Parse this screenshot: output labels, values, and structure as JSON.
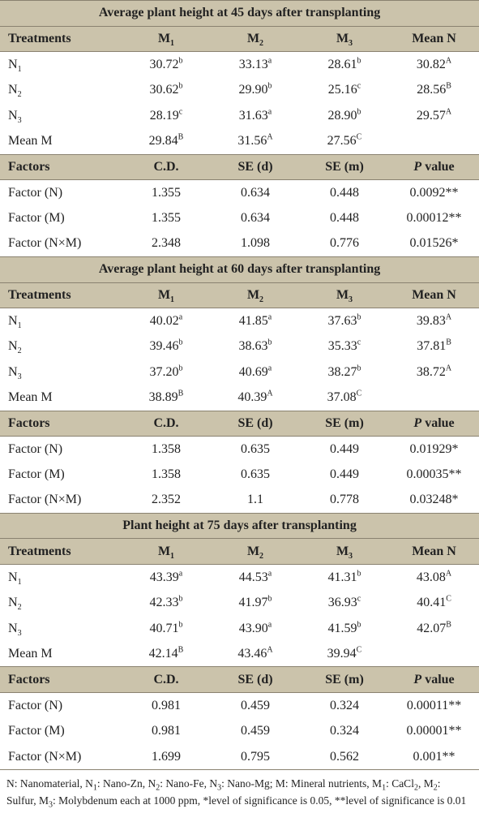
{
  "sections": [
    {
      "title": "Average plant height at 45 days after transplanting",
      "header": [
        [
          {
            "t": "Treatments"
          }
        ],
        [
          {
            "t": "M"
          },
          {
            "t": "1",
            "s": "sub"
          }
        ],
        [
          {
            "t": "M"
          },
          {
            "t": "2",
            "s": "sub"
          }
        ],
        [
          {
            "t": "M"
          },
          {
            "t": "3",
            "s": "sub"
          }
        ],
        [
          {
            "t": "Mean N"
          }
        ]
      ],
      "rows": [
        [
          [
            {
              "t": "N"
            },
            {
              "t": "1",
              "s": "sub"
            }
          ],
          [
            {
              "t": "30.72"
            },
            {
              "t": "b",
              "s": "sup"
            }
          ],
          [
            {
              "t": "33.13"
            },
            {
              "t": "a",
              "s": "sup"
            }
          ],
          [
            {
              "t": "28.61"
            },
            {
              "t": "b",
              "s": "sup"
            }
          ],
          [
            {
              "t": "30.82"
            },
            {
              "t": "A",
              "s": "sup"
            }
          ]
        ],
        [
          [
            {
              "t": "N"
            },
            {
              "t": "2",
              "s": "sub"
            }
          ],
          [
            {
              "t": "30.62"
            },
            {
              "t": "b",
              "s": "sup"
            }
          ],
          [
            {
              "t": "29.90"
            },
            {
              "t": "b",
              "s": "sup"
            }
          ],
          [
            {
              "t": "25.16"
            },
            {
              "t": "c",
              "s": "sup"
            }
          ],
          [
            {
              "t": "28.56"
            },
            {
              "t": "B",
              "s": "sup"
            }
          ]
        ],
        [
          [
            {
              "t": "N"
            },
            {
              "t": "3",
              "s": "sub"
            }
          ],
          [
            {
              "t": "28.19"
            },
            {
              "t": "c",
              "s": "sup"
            }
          ],
          [
            {
              "t": "31.63"
            },
            {
              "t": "a",
              "s": "sup"
            }
          ],
          [
            {
              "t": "28.90"
            },
            {
              "t": "b",
              "s": "sup"
            }
          ],
          [
            {
              "t": "29.57"
            },
            {
              "t": "A",
              "s": "sup"
            }
          ]
        ],
        [
          [
            {
              "t": "Mean M"
            }
          ],
          [
            {
              "t": "29.84"
            },
            {
              "t": "B",
              "s": "sup"
            }
          ],
          [
            {
              "t": "31.56"
            },
            {
              "t": "A",
              "s": "sup"
            }
          ],
          [
            {
              "t": "27.56"
            },
            {
              "t": "C",
              "s": "sup"
            }
          ],
          []
        ]
      ],
      "factor_header": [
        [
          {
            "t": "Factors"
          }
        ],
        [
          {
            "t": "C.D."
          }
        ],
        [
          {
            "t": "SE (d)"
          }
        ],
        [
          {
            "t": "SE (m)"
          }
        ],
        [
          {
            "t": "P",
            "s": "i"
          },
          {
            "t": " value"
          }
        ]
      ],
      "factor_rows": [
        [
          [
            {
              "t": "Factor (N)"
            }
          ],
          [
            {
              "t": "1.355"
            }
          ],
          [
            {
              "t": "0.634"
            }
          ],
          [
            {
              "t": "0.448"
            }
          ],
          [
            {
              "t": "0.0092**"
            }
          ]
        ],
        [
          [
            {
              "t": "Factor (M)"
            }
          ],
          [
            {
              "t": "1.355"
            }
          ],
          [
            {
              "t": "0.634"
            }
          ],
          [
            {
              "t": "0.448"
            }
          ],
          [
            {
              "t": "0.00012**"
            }
          ]
        ],
        [
          [
            {
              "t": "Factor (N×M)"
            }
          ],
          [
            {
              "t": "2.348"
            }
          ],
          [
            {
              "t": "1.098"
            }
          ],
          [
            {
              "t": "0.776"
            }
          ],
          [
            {
              "t": "0.01526*"
            }
          ]
        ]
      ]
    },
    {
      "title": "Average plant height at 60 days after transplanting",
      "header": [
        [
          {
            "t": "Treatments"
          }
        ],
        [
          {
            "t": "M"
          },
          {
            "t": "1",
            "s": "sub"
          }
        ],
        [
          {
            "t": "M"
          },
          {
            "t": "2",
            "s": "sub"
          }
        ],
        [
          {
            "t": "M"
          },
          {
            "t": "3",
            "s": "sub"
          }
        ],
        [
          {
            "t": "Mean N"
          }
        ]
      ],
      "rows": [
        [
          [
            {
              "t": "N"
            },
            {
              "t": "1",
              "s": "sub"
            }
          ],
          [
            {
              "t": "40.02"
            },
            {
              "t": "a",
              "s": "sup"
            }
          ],
          [
            {
              "t": "41.85"
            },
            {
              "t": "a",
              "s": "sup"
            }
          ],
          [
            {
              "t": "37.63"
            },
            {
              "t": "b",
              "s": "sup"
            }
          ],
          [
            {
              "t": "39.83"
            },
            {
              "t": "A",
              "s": "sup"
            }
          ]
        ],
        [
          [
            {
              "t": "N"
            },
            {
              "t": "2",
              "s": "sub"
            }
          ],
          [
            {
              "t": "39.46"
            },
            {
              "t": "b",
              "s": "sup"
            }
          ],
          [
            {
              "t": "38.63"
            },
            {
              "t": "b",
              "s": "sup"
            }
          ],
          [
            {
              "t": "35.33"
            },
            {
              "t": "c",
              "s": "sup"
            }
          ],
          [
            {
              "t": "37.81"
            },
            {
              "t": "B",
              "s": "sup"
            }
          ]
        ],
        [
          [
            {
              "t": "N"
            },
            {
              "t": "3",
              "s": "sub"
            }
          ],
          [
            {
              "t": "37.20"
            },
            {
              "t": "b",
              "s": "sup"
            }
          ],
          [
            {
              "t": "40.69"
            },
            {
              "t": "a",
              "s": "sup"
            }
          ],
          [
            {
              "t": "38.27"
            },
            {
              "t": "b",
              "s": "sup"
            }
          ],
          [
            {
              "t": "38.72"
            },
            {
              "t": "A",
              "s": "sup"
            }
          ]
        ],
        [
          [
            {
              "t": "Mean M"
            }
          ],
          [
            {
              "t": "38.89"
            },
            {
              "t": "B",
              "s": "sup"
            }
          ],
          [
            {
              "t": "40.39"
            },
            {
              "t": "A",
              "s": "sup"
            }
          ],
          [
            {
              "t": "37.08"
            },
            {
              "t": "C",
              "s": "sup"
            }
          ],
          []
        ]
      ],
      "factor_header": [
        [
          {
            "t": "Factors"
          }
        ],
        [
          {
            "t": "C.D."
          }
        ],
        [
          {
            "t": "SE (d)"
          }
        ],
        [
          {
            "t": "SE (m)"
          }
        ],
        [
          {
            "t": "P",
            "s": "i"
          },
          {
            "t": " value"
          }
        ]
      ],
      "factor_rows": [
        [
          [
            {
              "t": "Factor (N)"
            }
          ],
          [
            {
              "t": "1.358"
            }
          ],
          [
            {
              "t": "0.635"
            }
          ],
          [
            {
              "t": "0.449"
            }
          ],
          [
            {
              "t": "0.01929*"
            }
          ]
        ],
        [
          [
            {
              "t": "Factor (M)"
            }
          ],
          [
            {
              "t": "1.358"
            }
          ],
          [
            {
              "t": "0.635"
            }
          ],
          [
            {
              "t": "0.449"
            }
          ],
          [
            {
              "t": "0.00035**"
            }
          ]
        ],
        [
          [
            {
              "t": "Factor (N×M)"
            }
          ],
          [
            {
              "t": "2.352"
            }
          ],
          [
            {
              "t": "1.1"
            }
          ],
          [
            {
              "t": "0.778"
            }
          ],
          [
            {
              "t": "0.03248*"
            }
          ]
        ]
      ]
    },
    {
      "title": "Plant height at 75 days after transplanting",
      "header": [
        [
          {
            "t": "Treatments"
          }
        ],
        [
          {
            "t": "M"
          },
          {
            "t": "1",
            "s": "sub"
          }
        ],
        [
          {
            "t": "M"
          },
          {
            "t": "2",
            "s": "sub"
          }
        ],
        [
          {
            "t": "M"
          },
          {
            "t": "3",
            "s": "sub"
          }
        ],
        [
          {
            "t": "Mean N"
          }
        ]
      ],
      "rows": [
        [
          [
            {
              "t": "N"
            },
            {
              "t": "1",
              "s": "sub"
            }
          ],
          [
            {
              "t": "43.39"
            },
            {
              "t": "a",
              "s": "sup"
            }
          ],
          [
            {
              "t": "44.53"
            },
            {
              "t": "a",
              "s": "sup"
            }
          ],
          [
            {
              "t": "41.31"
            },
            {
              "t": "b",
              "s": "sup"
            }
          ],
          [
            {
              "t": "43.08"
            },
            {
              "t": "A",
              "s": "sup"
            }
          ]
        ],
        [
          [
            {
              "t": "N"
            },
            {
              "t": "2",
              "s": "sub"
            }
          ],
          [
            {
              "t": "42.33"
            },
            {
              "t": "b",
              "s": "sup"
            }
          ],
          [
            {
              "t": "41.97"
            },
            {
              "t": "b",
              "s": "sup"
            }
          ],
          [
            {
              "t": "36.93"
            },
            {
              "t": "c",
              "s": "sup"
            }
          ],
          [
            {
              "t": "40.41"
            },
            {
              "t": "C",
              "s": "sup"
            }
          ]
        ],
        [
          [
            {
              "t": "N"
            },
            {
              "t": "3",
              "s": "sub"
            }
          ],
          [
            {
              "t": "40.71"
            },
            {
              "t": "b",
              "s": "sup"
            }
          ],
          [
            {
              "t": "43.90"
            },
            {
              "t": "a",
              "s": "sup"
            }
          ],
          [
            {
              "t": "41.59"
            },
            {
              "t": "b",
              "s": "sup"
            }
          ],
          [
            {
              "t": "42.07"
            },
            {
              "t": "B",
              "s": "sup"
            }
          ]
        ],
        [
          [
            {
              "t": "Mean M"
            }
          ],
          [
            {
              "t": "42.14"
            },
            {
              "t": "B",
              "s": "sup"
            }
          ],
          [
            {
              "t": "43.46"
            },
            {
              "t": "A",
              "s": "sup"
            }
          ],
          [
            {
              "t": "39.94"
            },
            {
              "t": "C",
              "s": "sup"
            }
          ],
          []
        ]
      ],
      "factor_header": [
        [
          {
            "t": "Factors"
          }
        ],
        [
          {
            "t": "C.D."
          }
        ],
        [
          {
            "t": "SE (d)"
          }
        ],
        [
          {
            "t": "SE (m)"
          }
        ],
        [
          {
            "t": "P",
            "s": "i"
          },
          {
            "t": " value"
          }
        ]
      ],
      "factor_rows": [
        [
          [
            {
              "t": "Factor (N)"
            }
          ],
          [
            {
              "t": "0.981"
            }
          ],
          [
            {
              "t": "0.459"
            }
          ],
          [
            {
              "t": "0.324"
            }
          ],
          [
            {
              "t": "0.00011**"
            }
          ]
        ],
        [
          [
            {
              "t": "Factor (M)"
            }
          ],
          [
            {
              "t": "0.981"
            }
          ],
          [
            {
              "t": "0.459"
            }
          ],
          [
            {
              "t": "0.324"
            }
          ],
          [
            {
              "t": "0.00001**"
            }
          ]
        ],
        [
          [
            {
              "t": "Factor (N×M)"
            }
          ],
          [
            {
              "t": "1.699"
            }
          ],
          [
            {
              "t": "0.795"
            }
          ],
          [
            {
              "t": "0.562"
            }
          ],
          [
            {
              "t": "0.001**"
            }
          ]
        ]
      ]
    }
  ],
  "footnote": [
    {
      "t": "N: Nanomaterial, N"
    },
    {
      "t": "1",
      "s": "sub"
    },
    {
      "t": ": Nano-Zn, N"
    },
    {
      "t": "2",
      "s": "sub"
    },
    {
      "t": ": Nano-Fe, N"
    },
    {
      "t": "3",
      "s": "sub"
    },
    {
      "t": ": Nano-Mg; M: Mineral nutrients, M"
    },
    {
      "t": "1",
      "s": "sub"
    },
    {
      "t": ": CaCl"
    },
    {
      "t": "2",
      "s": "sub"
    },
    {
      "t": ", M"
    },
    {
      "t": "2",
      "s": "sub"
    },
    {
      "t": ": Sulfur, M"
    },
    {
      "t": "3",
      "s": "sub"
    },
    {
      "t": ": Molybdenum each at 1000 ppm, *level of significance is 0.05, **level of significance is 0.01"
    }
  ]
}
